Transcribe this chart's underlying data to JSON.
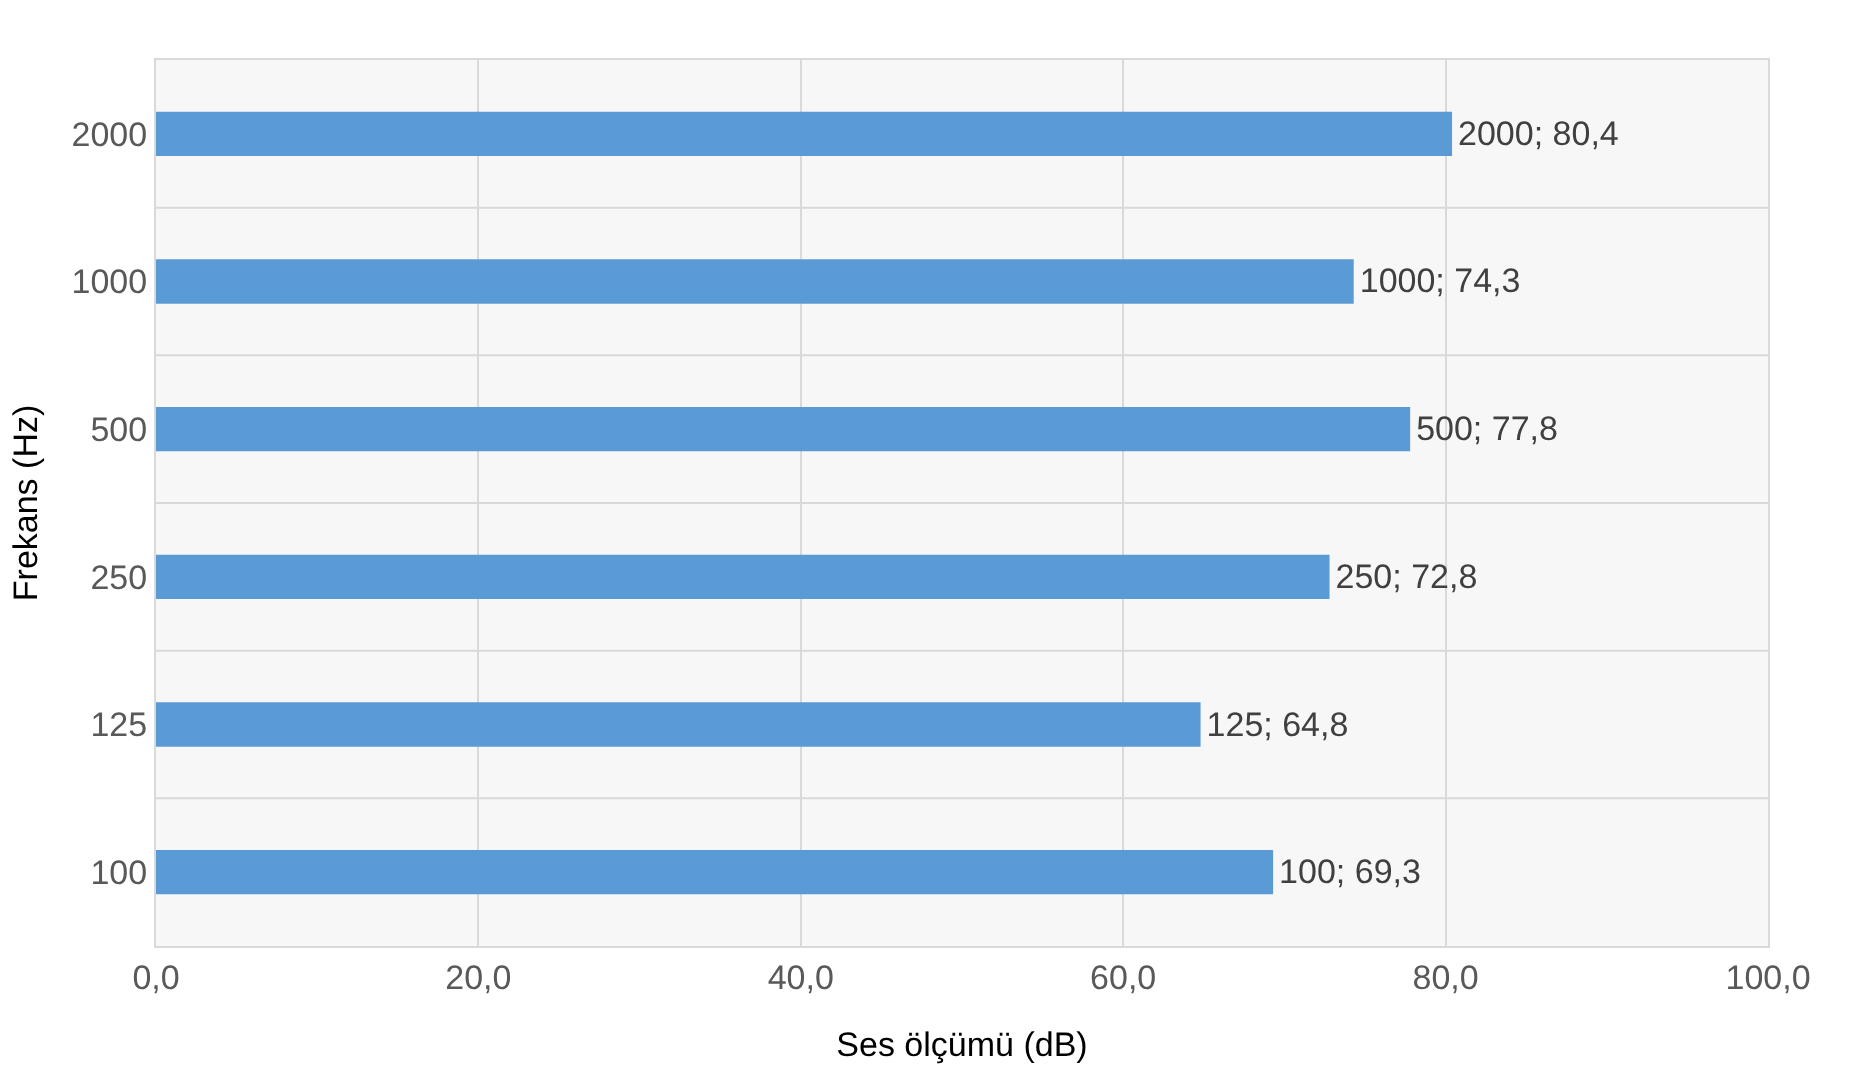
{
  "chart_data": {
    "type": "bar",
    "orientation": "horizontal",
    "xlabel": "Ses ölçümü (dB)",
    "ylabel": "Frekans (Hz)",
    "categories": [
      "2000",
      "1000",
      "500",
      "250",
      "125",
      "100"
    ],
    "values": [
      80.4,
      74.3,
      77.8,
      72.8,
      64.8,
      69.3
    ],
    "value_labels": [
      "2000; 80,4",
      "1000; 74,3",
      "500; 77,8",
      "250; 72,8",
      "125; 64,8",
      "100; 69,3"
    ],
    "color": "#5b9bd5",
    "xlim": [
      0,
      100
    ],
    "xticks": [
      {
        "value": 0,
        "label": "0,0"
      },
      {
        "value": 20,
        "label": "20,0"
      },
      {
        "value": 40,
        "label": "40,0"
      },
      {
        "value": 60,
        "label": "60,0"
      },
      {
        "value": 80,
        "label": "80,0"
      },
      {
        "value": 100,
        "label": "100,0"
      }
    ],
    "grid": true,
    "legend": false
  }
}
